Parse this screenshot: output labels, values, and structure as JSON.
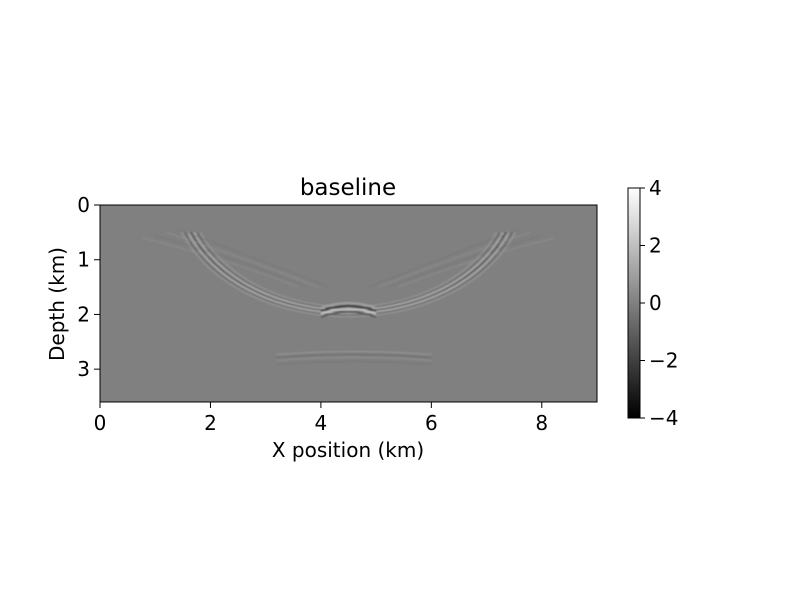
{
  "chart_data": {
    "type": "heatmap",
    "title": "baseline",
    "xlabel": "X position (km)",
    "ylabel": "Depth (km)",
    "xlim": [
      0,
      9
    ],
    "ylim": [
      3.6,
      0
    ],
    "xticks": [
      0,
      2,
      4,
      6,
      8
    ],
    "yticks": [
      0,
      1,
      2,
      3
    ],
    "colormap": "gray",
    "colorbar": {
      "range": [
        -4,
        4
      ],
      "ticks": [
        4,
        2,
        0,
        -2,
        -4
      ],
      "tick_labels": [
        "4",
        "2",
        "0",
        "−2",
        "−4"
      ]
    },
    "background_value": 0,
    "features": [
      {
        "name": "seismic-arc",
        "center_x_km": 4.5,
        "center_depth_km": -0.3,
        "radius_x_km": 3.05,
        "radius_depth_km": 2.25,
        "from_depth_km": 0.5
      },
      {
        "name": "focal-reflector",
        "x_km": 4.5,
        "depth_km": 1.9,
        "half_width_km": 0.5
      },
      {
        "name": "deep-reflector",
        "x_range_km": [
          3.2,
          6.0
        ],
        "depth_km": 2.75
      }
    ],
    "colors": {
      "background": "#808080",
      "positive": "#ffffff",
      "negative": "#000000"
    }
  }
}
